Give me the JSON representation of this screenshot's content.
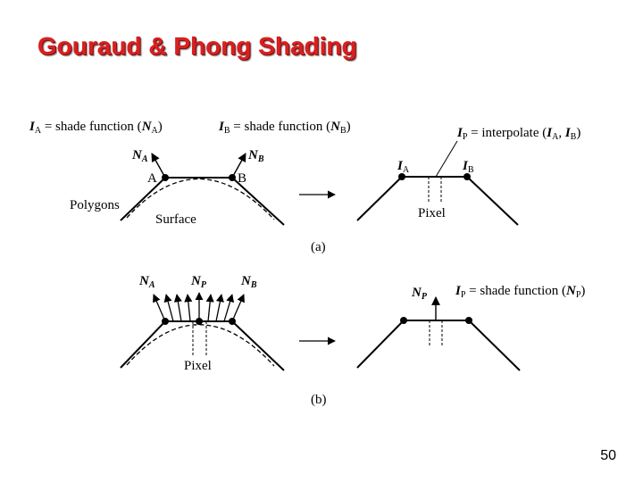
{
  "slide": {
    "title": "Gouraud & Phong Shading",
    "page_number": "50"
  },
  "diagram": {
    "top_left_eq_a": {
      "symbol": "I",
      "sub": "A",
      "text": " = shade function (",
      "arg": "N",
      "argsub": "A",
      "close": ")"
    },
    "top_left_eq_b": {
      "symbol": "I",
      "sub": "B",
      "text": " = shade function (",
      "arg": "N",
      "argsub": "B",
      "close": ")"
    },
    "top_right_eq": {
      "symbol": "I",
      "sub": "P",
      "text": " = interpolate (",
      "a": "I",
      "asub": "A",
      "b": "I",
      "bsub": "B",
      "close": ")"
    },
    "normal_a": {
      "symbol": "N",
      "sub": "A"
    },
    "normal_b": {
      "symbol": "N",
      "sub": "B"
    },
    "normal_p": {
      "symbol": "N",
      "sub": "P"
    },
    "point_a": "A",
    "point_b": "B",
    "intensity_a": {
      "symbol": "I",
      "sub": "A"
    },
    "intensity_b": {
      "symbol": "I",
      "sub": "B"
    },
    "polygons_label": "Polygons",
    "surface_label": "Surface",
    "pixel_label": "Pixel",
    "caption_a": "(a)",
    "caption_b": "(b)",
    "bottom_right_eq": {
      "symbol": "I",
      "sub": "P",
      "text": " = shade function (",
      "arg": "N",
      "argsub": "P",
      "close": ")"
    }
  }
}
